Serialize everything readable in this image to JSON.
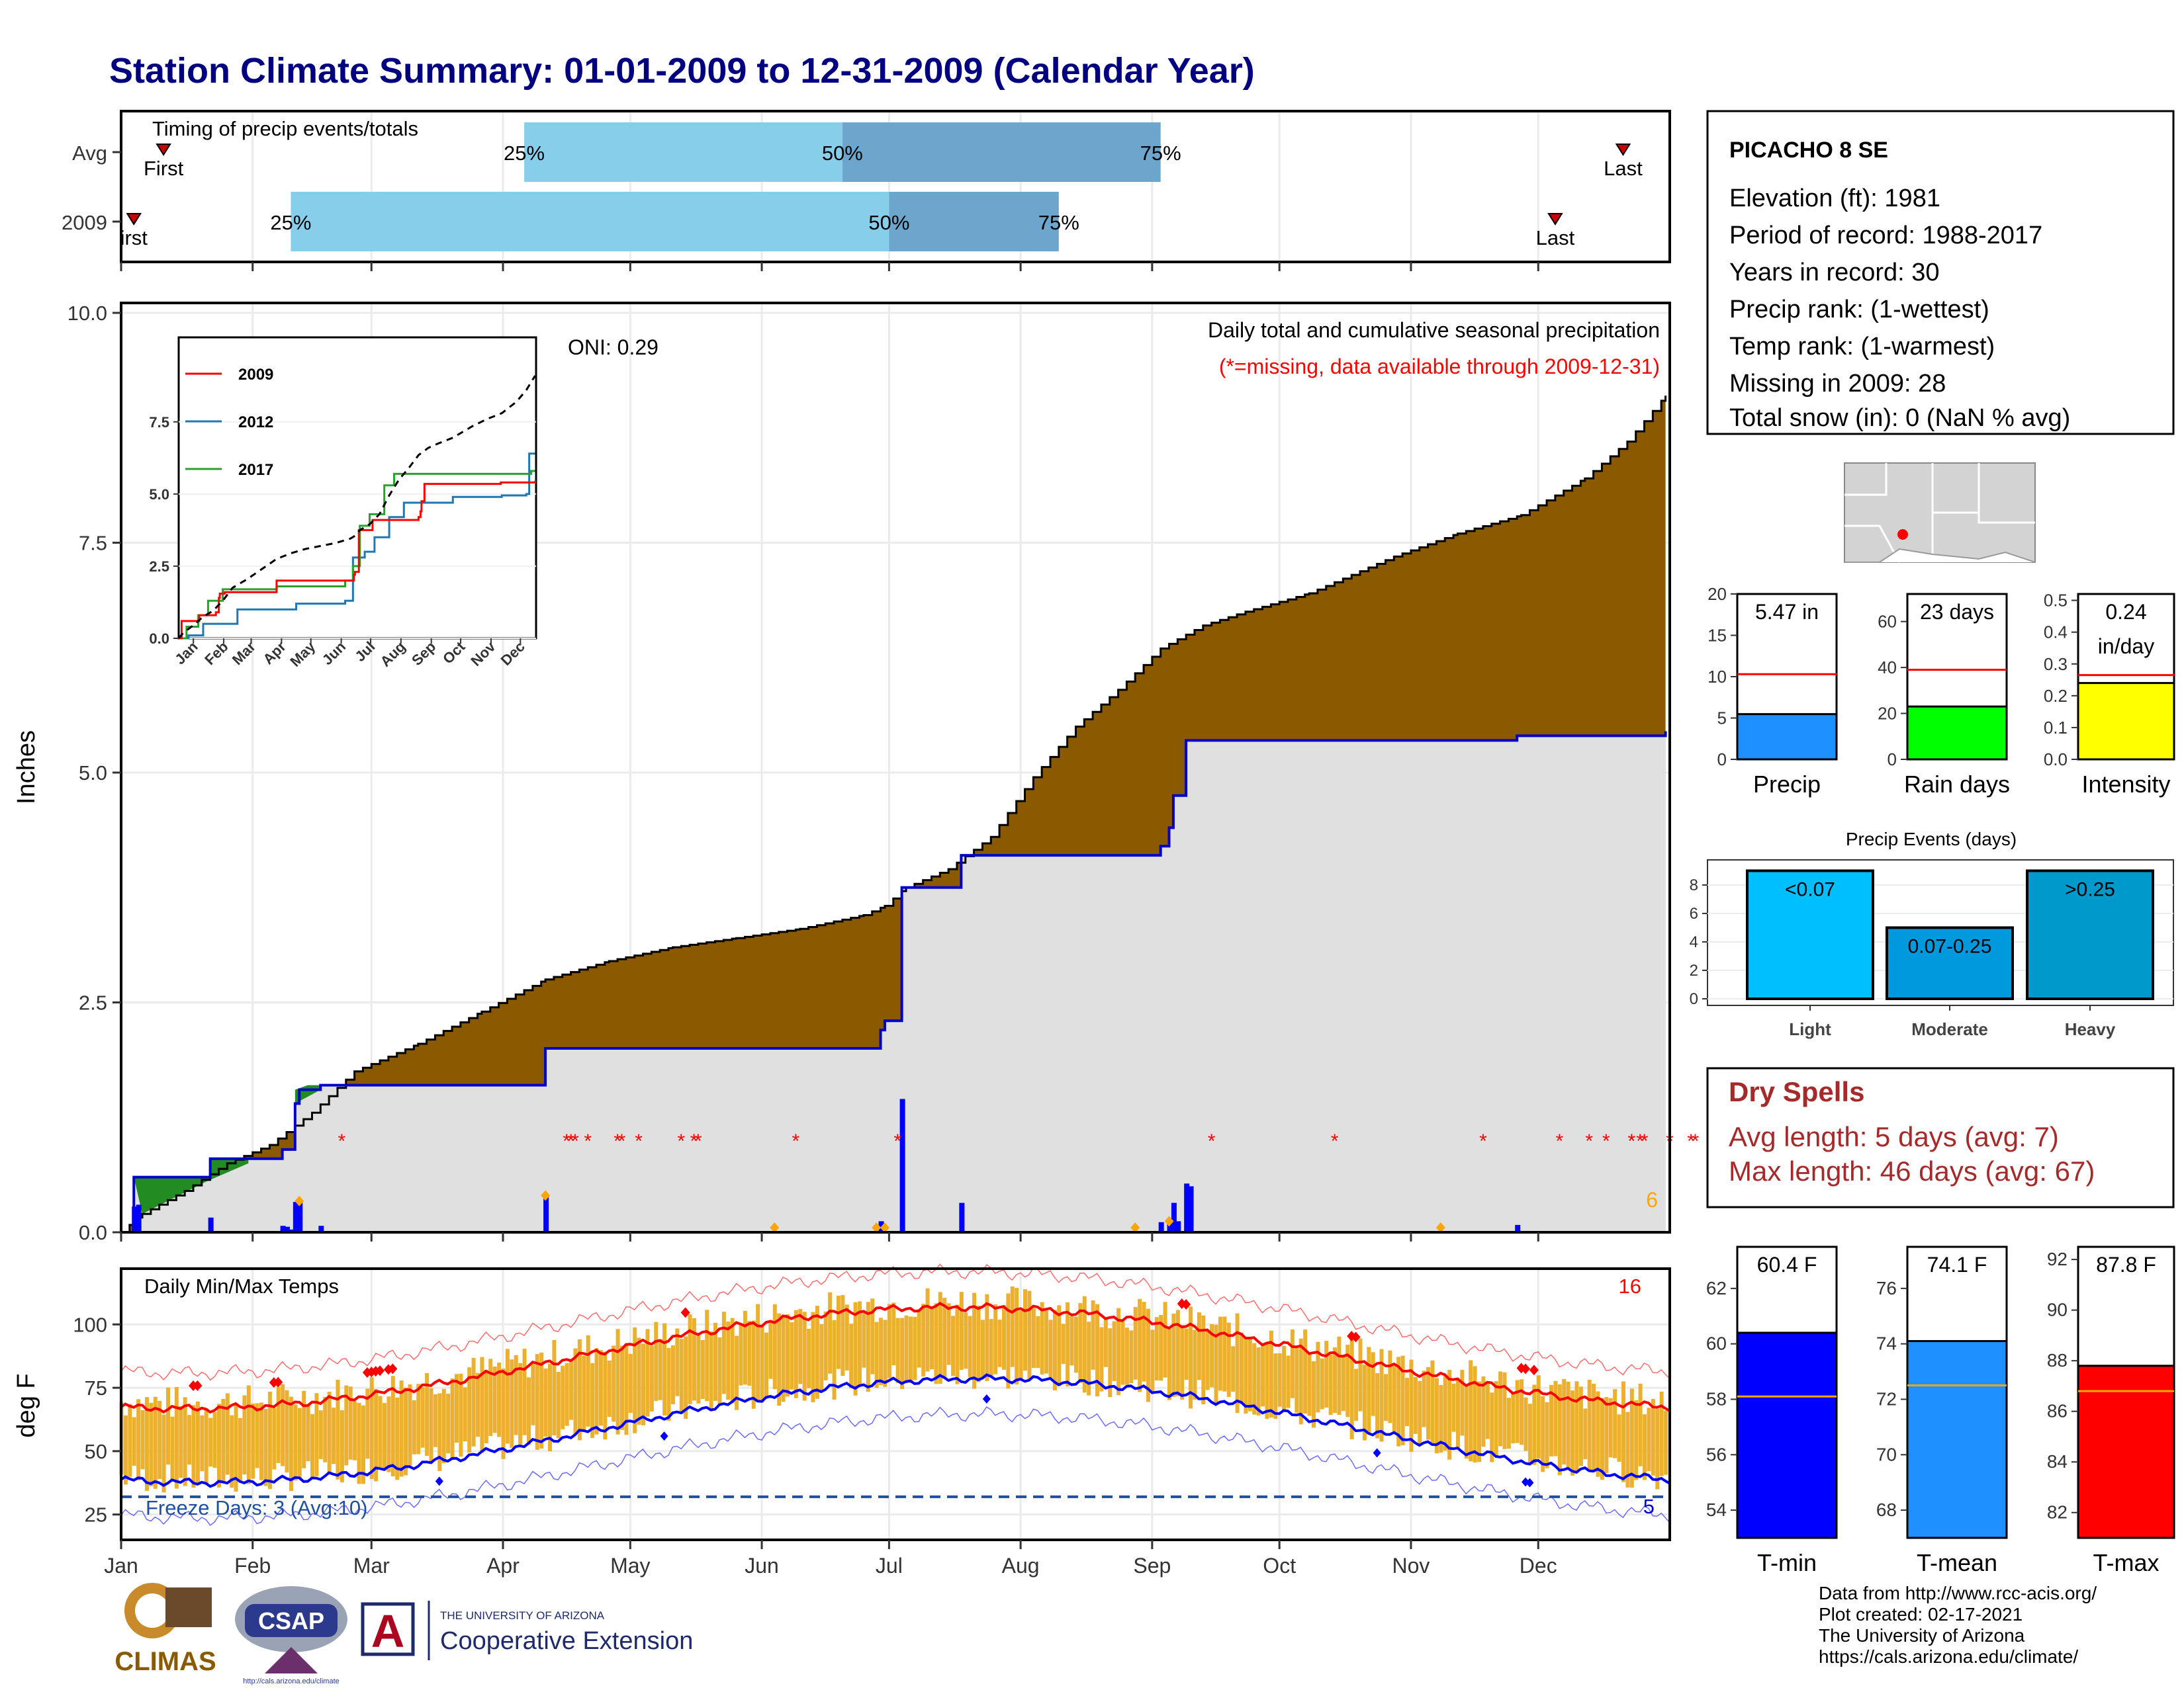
{
  "title": "Station Climate Summary: 01-01-2009 to 12-31-2009 (Calendar Year)",
  "colors": {
    "title": "#000080",
    "brown": "#8B5A00",
    "green": "#228B22",
    "grey_fill": "#E0E0E0",
    "blue_line": "#0000CD",
    "light_blue": "#87CEEB",
    "mid_blue": "#6CA6CD",
    "red": "#FF0000",
    "orange": "#FFA500",
    "gold": "#EBB02D",
    "tmin_bar": "#0000FF",
    "tmean_bar": "#1E90FF",
    "tmax_bar": "#FF0000"
  },
  "timing": {
    "label": "Timing of precip events/totals",
    "rows": [
      {
        "name": "Avg",
        "p25": 95,
        "p50": 170,
        "p75": 245,
        "first": 10,
        "last": 354,
        "first_label": "First",
        "last_label": "Last"
      },
      {
        "name": "2009",
        "p25": 40,
        "p50": 181,
        "p75": 221,
        "first": 3,
        "last": 338,
        "first_label": "irst",
        "last_label": "Last"
      }
    ],
    "pct_labels": [
      "25%",
      "50%",
      "75%"
    ]
  },
  "station": {
    "name": "PICACHO 8 SE",
    "lines": [
      "Elevation (ft): 1981",
      "Period of record: 1988-2017",
      "Years in record: 30",
      "Precip rank:  (1-wettest)",
      "Temp rank:  (1-warmest)",
      "Missing in 2009: 28",
      "Total snow (in): 0 (NaN % avg)"
    ]
  },
  "precip_main": {
    "oni": "ONI: 0.29",
    "title": "Daily total and cumulative seasonal precipitation",
    "subtitle": "(*=missing, data available through 2009-12-31)",
    "ylabel": "Inches",
    "y_ticks": [
      "0.0",
      "2.5",
      "5.0",
      "7.5",
      "10.0"
    ],
    "corner_count": "6",
    "missing_days": [
      52,
      105,
      106,
      107,
      110,
      117,
      118,
      122,
      132,
      135,
      136,
      159,
      183,
      257,
      286,
      321,
      339,
      350,
      356,
      358,
      359,
      365,
      366,
      376,
      390,
      391
    ],
    "extreme_days": [
      100,
      247,
      239,
      311,
      180,
      154,
      178,
      42
    ],
    "events": [
      {
        "day": 3,
        "amt": 0.28
      },
      {
        "day": 4,
        "amt": 0.3
      },
      {
        "day": 21,
        "amt": 0.16
      },
      {
        "day": 38,
        "amt": 0.07
      },
      {
        "day": 39,
        "amt": 0.06
      },
      {
        "day": 40,
        "amt": 0.03
      },
      {
        "day": 41,
        "amt": 0.33
      },
      {
        "day": 42,
        "amt": 0.34
      },
      {
        "day": 47,
        "amt": 0.07
      },
      {
        "day": 100,
        "amt": 0.4
      },
      {
        "day": 179,
        "amt": 0.12
      },
      {
        "day": 184,
        "amt": 1.45
      },
      {
        "day": 198,
        "amt": 0.32
      },
      {
        "day": 245,
        "amt": 0.11
      },
      {
        "day": 247,
        "amt": 0.12
      },
      {
        "day": 248,
        "amt": 0.32
      },
      {
        "day": 249,
        "amt": 0.12
      },
      {
        "day": 251,
        "amt": 0.53
      },
      {
        "day": 252,
        "amt": 0.5
      },
      {
        "day": 329,
        "amt": 0.08
      }
    ],
    "cum_2009": [
      [
        0,
        0
      ],
      [
        3,
        0.6
      ],
      [
        20,
        0.6
      ],
      [
        21,
        0.8
      ],
      [
        38,
        0.9
      ],
      [
        41,
        1.4
      ],
      [
        42,
        1.55
      ],
      [
        47,
        1.6
      ],
      [
        100,
        2.0
      ],
      [
        179,
        2.2
      ],
      [
        180,
        2.3
      ],
      [
        184,
        3.75
      ],
      [
        198,
        4.1
      ],
      [
        230,
        4.1
      ],
      [
        245,
        4.2
      ],
      [
        247,
        4.4
      ],
      [
        248,
        4.75
      ],
      [
        251,
        5.35
      ],
      [
        329,
        5.4
      ],
      [
        364,
        5.45
      ]
    ],
    "cum_avg": [
      [
        0,
        0
      ],
      [
        5,
        0.2
      ],
      [
        15,
        0.45
      ],
      [
        25,
        0.75
      ],
      [
        35,
        0.95
      ],
      [
        45,
        1.3
      ],
      [
        55,
        1.75
      ],
      [
        70,
        2.05
      ],
      [
        85,
        2.4
      ],
      [
        100,
        2.75
      ],
      [
        115,
        2.95
      ],
      [
        130,
        3.1
      ],
      [
        145,
        3.2
      ],
      [
        160,
        3.3
      ],
      [
        175,
        3.45
      ],
      [
        180,
        3.55
      ],
      [
        185,
        3.75
      ],
      [
        195,
        3.95
      ],
      [
        205,
        4.3
      ],
      [
        215,
        4.95
      ],
      [
        225,
        5.5
      ],
      [
        235,
        5.9
      ],
      [
        245,
        6.35
      ],
      [
        255,
        6.6
      ],
      [
        265,
        6.75
      ],
      [
        280,
        6.95
      ],
      [
        300,
        7.35
      ],
      [
        315,
        7.6
      ],
      [
        330,
        7.8
      ],
      [
        345,
        8.2
      ],
      [
        355,
        8.6
      ],
      [
        364,
        9.1
      ]
    ]
  },
  "inset": {
    "y_ticks": [
      "0.0",
      "2.5",
      "5.0",
      "7.5"
    ],
    "x_ticks": [
      "Jan",
      "Feb",
      "Mar",
      "Apr",
      "May",
      "Jun",
      "Jul",
      "Aug",
      "Sep",
      "Oct",
      "Nov",
      "Dec"
    ],
    "legend": [
      {
        "name": "2009",
        "color": "#FF0000"
      },
      {
        "name": "2012",
        "color": "#1F77B4"
      },
      {
        "name": "2017",
        "color": "#2CA02C"
      }
    ],
    "series": {
      "2009": [
        [
          0,
          0
        ],
        [
          3,
          0.6
        ],
        [
          20,
          0.6
        ],
        [
          21,
          0.8
        ],
        [
          38,
          0.9
        ],
        [
          41,
          1.4
        ],
        [
          42,
          1.55
        ],
        [
          47,
          1.6
        ],
        [
          100,
          2.0
        ],
        [
          179,
          2.2
        ],
        [
          180,
          2.3
        ],
        [
          184,
          3.75
        ],
        [
          198,
          4.1
        ],
        [
          230,
          4.1
        ],
        [
          245,
          4.2
        ],
        [
          247,
          4.4
        ],
        [
          248,
          4.75
        ],
        [
          251,
          5.35
        ],
        [
          329,
          5.4
        ],
        [
          364,
          5.45
        ]
      ],
      "2012": [
        [
          0,
          0
        ],
        [
          10,
          0.1
        ],
        [
          25,
          0.5
        ],
        [
          45,
          0.5
        ],
        [
          60,
          1.0
        ],
        [
          120,
          1.2
        ],
        [
          170,
          1.3
        ],
        [
          178,
          2.8
        ],
        [
          190,
          3.0
        ],
        [
          200,
          3.5
        ],
        [
          215,
          4.2
        ],
        [
          230,
          4.7
        ],
        [
          250,
          4.7
        ],
        [
          280,
          4.9
        ],
        [
          330,
          4.95
        ],
        [
          355,
          5.0
        ],
        [
          358,
          6.4
        ],
        [
          364,
          6.4
        ]
      ],
      "2017": [
        [
          0,
          0
        ],
        [
          8,
          0.4
        ],
        [
          20,
          0.8
        ],
        [
          30,
          1.3
        ],
        [
          45,
          1.7
        ],
        [
          100,
          1.8
        ],
        [
          170,
          2.0
        ],
        [
          178,
          2.5
        ],
        [
          185,
          3.9
        ],
        [
          195,
          4.3
        ],
        [
          210,
          5.3
        ],
        [
          220,
          5.7
        ],
        [
          240,
          5.7
        ],
        [
          360,
          5.8
        ],
        [
          364,
          5.8
        ]
      ],
      "avg": [
        [
          0,
          0
        ],
        [
          5,
          0.2
        ],
        [
          15,
          0.45
        ],
        [
          25,
          0.75
        ],
        [
          35,
          0.95
        ],
        [
          45,
          1.3
        ],
        [
          55,
          1.75
        ],
        [
          70,
          2.05
        ],
        [
          85,
          2.4
        ],
        [
          100,
          2.75
        ],
        [
          115,
          2.95
        ],
        [
          130,
          3.1
        ],
        [
          145,
          3.2
        ],
        [
          160,
          3.3
        ],
        [
          175,
          3.45
        ],
        [
          180,
          3.55
        ],
        [
          185,
          3.75
        ],
        [
          195,
          3.95
        ],
        [
          205,
          4.3
        ],
        [
          215,
          4.95
        ],
        [
          225,
          5.5
        ],
        [
          235,
          5.9
        ],
        [
          245,
          6.35
        ],
        [
          255,
          6.6
        ],
        [
          265,
          6.75
        ],
        [
          280,
          6.95
        ],
        [
          300,
          7.35
        ],
        [
          315,
          7.6
        ],
        [
          330,
          7.8
        ],
        [
          345,
          8.2
        ],
        [
          355,
          8.6
        ],
        [
          364,
          9.1
        ]
      ]
    }
  },
  "summary_bars": {
    "precip": {
      "value_label": "5.47 in",
      "value": 5.47,
      "avg": 10.3,
      "ticks": [
        "0",
        "5",
        "10",
        "15",
        "20"
      ],
      "ymax": 20,
      "label": "Precip"
    },
    "rain_days": {
      "value_label": "23 days",
      "value": 23,
      "avg": 39,
      "ticks": [
        "0",
        "20",
        "40",
        "60"
      ],
      "ymax": 72,
      "label": "Rain days"
    },
    "intensity": {
      "value_label_1": "0.24",
      "value_label_2": "in/day",
      "value": 0.24,
      "avg": 0.265,
      "ticks": [
        "0.0",
        "0.1",
        "0.2",
        "0.3",
        "0.4",
        "0.5"
      ],
      "ymax": 0.52,
      "label": "Intensity"
    }
  },
  "precip_events": {
    "title": "Precip Events (days)",
    "ticks": [
      "0",
      "2",
      "4",
      "6",
      "8"
    ],
    "bars": [
      {
        "category": "Light",
        "label": "<0.07",
        "value": 9
      },
      {
        "category": "Moderate",
        "label": "0.07-0.25",
        "value": 5
      },
      {
        "category": "Heavy",
        "label": ">0.25",
        "value": 9
      }
    ]
  },
  "dry_spells": {
    "title": "Dry Spells",
    "avg_line": "Avg length: 5 days (avg: 7)",
    "max_line": "Max length: 46 days (avg: 67)"
  },
  "temps": {
    "label": "Daily Min/Max Temps",
    "ylabel": "deg F",
    "y_ticks": [
      "25",
      "50",
      "75",
      "100"
    ],
    "hot_count": "16",
    "cold_count": "5",
    "freeze_label": "Freeze Days: 3 (Avg:10)",
    "freeze_line": 32,
    "tmin_hot_days": [
      75,
      128,
      204,
      296,
      331,
      332
    ],
    "tmax_hot_days": [
      17,
      18,
      36,
      37,
      58,
      59,
      60,
      61,
      63,
      64,
      133,
      250,
      251,
      290,
      291,
      330,
      331,
      333
    ]
  },
  "temp_bars": {
    "tmin": {
      "value_label": "60.4 F",
      "value": 60.4,
      "avg": 58.1,
      "ticks": [
        "54",
        "56",
        "58",
        "60",
        "62"
      ],
      "ymin": 53,
      "ymax": 63.5,
      "label": "T-min"
    },
    "tmean": {
      "value_label": "74.1 F",
      "value": 74.1,
      "avg": 72.5,
      "ticks": [
        "68",
        "70",
        "72",
        "74",
        "76"
      ],
      "ymin": 67,
      "ymax": 77.5,
      "label": "T-mean"
    },
    "tmax": {
      "value_label": "87.8 F",
      "value": 87.8,
      "avg": 86.8,
      "ticks": [
        "82",
        "84",
        "86",
        "88",
        "90",
        "92"
      ],
      "ymin": 81,
      "ymax": 92.5,
      "label": "T-max"
    }
  },
  "months": [
    "Jan",
    "Feb",
    "Mar",
    "Apr",
    "May",
    "Jun",
    "Jul",
    "Aug",
    "Sep",
    "Oct",
    "Nov",
    "Dec"
  ],
  "logos": {
    "climas": "CLIMAS",
    "csap": "CSAP",
    "csap_url": "http://cals.arizona.edu/climate",
    "ua_letter": "A",
    "ua_small": "THE UNIVERSITY OF ARIZONA",
    "ua_big": "Cooperative Extension"
  },
  "footer": [
    "Data from http://www.rcc-acis.org/",
    "Plot created: 02-17-2021",
    "The University of Arizona",
    "https://cals.arizona.edu/climate/"
  ]
}
